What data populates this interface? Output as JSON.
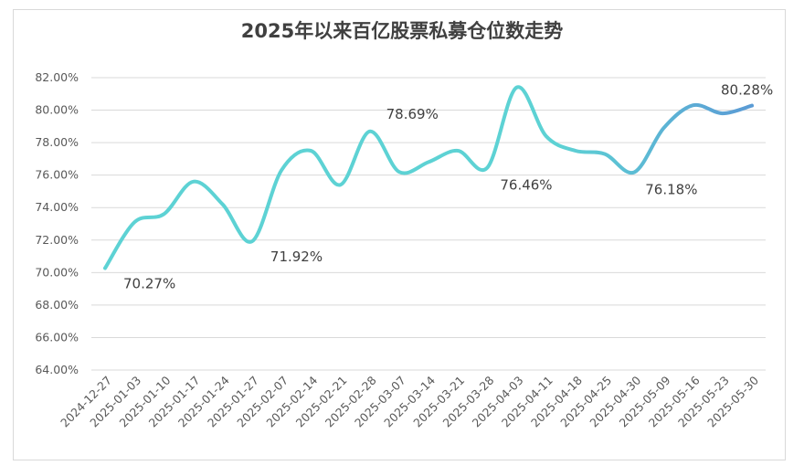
{
  "chart_data": {
    "type": "line",
    "title": "2025年以来百亿股票私募仓位数走势",
    "x": [
      "2024-12-27",
      "2025-01-03",
      "2025-01-10",
      "2025-01-17",
      "2025-01-24",
      "2025-01-27",
      "2025-02-07",
      "2025-02-14",
      "2025-02-21",
      "2025-02-28",
      "2025-03-07",
      "2025-03-14",
      "2025-03-21",
      "2025-03-28",
      "2025-04-03",
      "2025-04-11",
      "2025-04-18",
      "2025-04-25",
      "2025-04-30",
      "2025-05-09",
      "2025-05-16",
      "2025-05-23",
      "2025-05-30"
    ],
    "y_tick_labels": [
      "64.00%",
      "66.00%",
      "68.00%",
      "70.00%",
      "72.00%",
      "74.00%",
      "76.00%",
      "78.00%",
      "80.00%",
      "82.00%"
    ],
    "ylim": [
      64,
      82
    ],
    "series": [
      {
        "values": [
          70.27,
          73.1,
          73.6,
          75.6,
          74.2,
          71.92,
          76.3,
          77.5,
          75.4,
          78.69,
          76.2,
          76.8,
          77.5,
          76.46,
          81.4,
          78.4,
          77.5,
          77.3,
          76.18,
          78.9,
          80.3,
          79.8,
          80.28
        ]
      }
    ],
    "data_labels": [
      {
        "index": 0,
        "text": "70.27%"
      },
      {
        "index": 5,
        "text": "71.92%"
      },
      {
        "index": 9,
        "text": "78.69%"
      },
      {
        "index": 13,
        "text": "76.46%"
      },
      {
        "index": 18,
        "text": "76.18%"
      },
      {
        "index": 22,
        "text": "80.28%"
      }
    ],
    "grid": true,
    "colors": {
      "line_start": "#5dd2d4",
      "line_end": "#5b9bd5",
      "grid": "#d9d9d9",
      "text": "#595959"
    }
  }
}
